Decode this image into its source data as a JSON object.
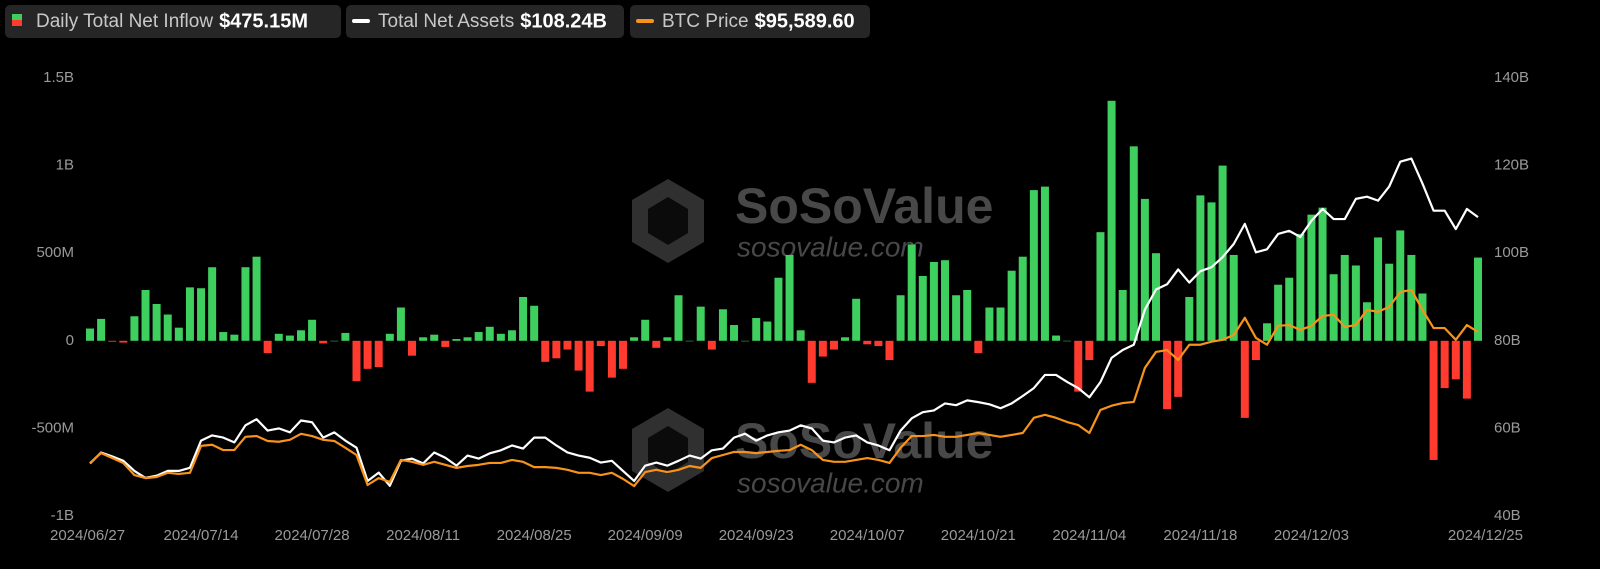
{
  "chart_data": {
    "type": "bar-line",
    "watermark": {
      "brand": "SoSoValue",
      "site": "sosovalue.com"
    },
    "categories": [
      "2024/06/27",
      null,
      null,
      null,
      null,
      null,
      null,
      null,
      null,
      null,
      "2024/07/14",
      null,
      null,
      null,
      null,
      null,
      null,
      null,
      null,
      null,
      "2024/07/28",
      null,
      null,
      null,
      null,
      null,
      null,
      null,
      null,
      null,
      "2024/08/11",
      null,
      null,
      null,
      null,
      null,
      null,
      null,
      null,
      null,
      "2024/08/25",
      null,
      null,
      null,
      null,
      null,
      null,
      null,
      null,
      null,
      "2024/09/09",
      null,
      null,
      null,
      null,
      null,
      null,
      null,
      null,
      null,
      "2024/09/23",
      null,
      null,
      null,
      null,
      null,
      null,
      null,
      null,
      null,
      "2024/10/07",
      null,
      null,
      null,
      null,
      null,
      null,
      null,
      null,
      null,
      "2024/10/21",
      null,
      null,
      null,
      null,
      null,
      null,
      null,
      null,
      null,
      "2024/11/04",
      null,
      null,
      null,
      null,
      null,
      null,
      null,
      null,
      null,
      "2024/11/18",
      null,
      null,
      null,
      null,
      null,
      null,
      null,
      null,
      null,
      "2024/12/03",
      null,
      null,
      null,
      null,
      null,
      null,
      null,
      null,
      null,
      null,
      null,
      null,
      null,
      null,
      "2024/12/25"
    ],
    "series": [
      {
        "name": "Daily Total Net Inflow",
        "latest_label": "$475.15M",
        "kind": "bar",
        "axis": "y",
        "color": "#3fcf5f",
        "negative_color": "#ff3b30",
        "values": [
          70,
          125,
          -5,
          -10,
          140,
          290,
          210,
          150,
          75,
          305,
          300,
          420,
          50,
          35,
          420,
          480,
          -70,
          40,
          30,
          60,
          120,
          -15,
          0,
          45,
          -230,
          -160,
          -150,
          40,
          190,
          -85,
          20,
          35,
          -35,
          10,
          20,
          50,
          80,
          40,
          60,
          250,
          200,
          -120,
          -100,
          -50,
          -170,
          -290,
          -30,
          -210,
          -160,
          20,
          120,
          -40,
          20,
          260,
          0,
          195,
          -50,
          180,
          90,
          0,
          130,
          110,
          360,
          490,
          60,
          -240,
          -90,
          -50,
          20,
          240,
          -20,
          -30,
          -110,
          260,
          550,
          370,
          450,
          460,
          260,
          290,
          -70,
          190,
          190,
          400,
          480,
          860,
          880,
          30,
          0,
          -290,
          -110,
          620,
          1370,
          290,
          1110,
          810,
          500,
          -390,
          -320,
          250,
          830,
          790,
          1000,
          490,
          -440,
          -110,
          100,
          320,
          360,
          610,
          720,
          760,
          380,
          490,
          430,
          220,
          590,
          440,
          630,
          490,
          270,
          -680,
          -270,
          -220,
          -330,
          475.15
        ]
      },
      {
        "name": "Total Net Assets",
        "latest_label": "$108.24B",
        "kind": "line",
        "axis": "y2",
        "color": "#ffffff",
        "values": [
          52.0,
          54.5,
          53.6,
          52.6,
          50.3,
          48.7,
          49.2,
          50.3,
          50.3,
          51.0,
          57.2,
          58.4,
          57.9,
          56.8,
          60.7,
          62.1,
          59.5,
          60.0,
          59.1,
          61.8,
          61.4,
          57.9,
          59.1,
          57.2,
          55.6,
          48.0,
          49.9,
          46.9,
          52.6,
          53.1,
          52.0,
          54.5,
          53.3,
          51.5,
          53.8,
          53.1,
          54.3,
          55.0,
          56.1,
          55.4,
          57.9,
          57.9,
          56.1,
          54.5,
          53.8,
          53.3,
          52.2,
          52.6,
          50.3,
          48.0,
          51.5,
          52.2,
          51.5,
          52.6,
          53.8,
          53.1,
          55.0,
          55.4,
          57.9,
          58.8,
          57.2,
          58.4,
          59.1,
          59.5,
          60.7,
          60.0,
          57.2,
          56.8,
          57.9,
          58.4,
          56.8,
          56.1,
          55.0,
          59.5,
          62.3,
          63.7,
          64.1,
          65.7,
          65.3,
          66.4,
          66.0,
          65.5,
          64.6,
          65.7,
          67.4,
          69.2,
          72.2,
          72.2,
          70.6,
          69.2,
          67.1,
          70.6,
          76.1,
          77.9,
          79.1,
          87.1,
          91.7,
          92.9,
          96.3,
          93.3,
          95.9,
          96.8,
          99.1,
          102.1,
          106.7,
          100.2,
          100.9,
          104.4,
          105.1,
          103.7,
          107.4,
          110.1,
          107.8,
          107.8,
          112.4,
          112.9,
          112.0,
          115.2,
          120.9,
          121.6,
          115.9,
          109.7,
          109.7,
          105.5,
          110.1,
          108.24
        ]
      },
      {
        "name": "BTC Price",
        "latest_label": "$95,589.60",
        "kind": "line",
        "axis": "y3",
        "color": "#f7931a",
        "values": [
          61000,
          63600,
          62300,
          61000,
          57800,
          57000,
          57300,
          58400,
          58100,
          58400,
          65500,
          65800,
          64400,
          64400,
          67900,
          68100,
          66800,
          66600,
          67100,
          68700,
          68100,
          67100,
          66800,
          65000,
          63100,
          55200,
          57000,
          56000,
          61800,
          61300,
          60500,
          61300,
          60500,
          59700,
          60200,
          60500,
          61000,
          61000,
          61800,
          61300,
          59900,
          59900,
          59700,
          59200,
          58400,
          58400,
          57800,
          58400,
          56800,
          54900,
          58600,
          59200,
          58600,
          59200,
          60200,
          59700,
          62300,
          63100,
          63900,
          63900,
          63600,
          63900,
          64200,
          64400,
          65800,
          64400,
          61800,
          61300,
          61300,
          61800,
          62300,
          61800,
          61000,
          65000,
          68100,
          68100,
          68400,
          67900,
          67900,
          68400,
          68900,
          68400,
          67900,
          68400,
          68900,
          72900,
          73700,
          72900,
          71800,
          71000,
          68900,
          75000,
          76100,
          76800,
          77100,
          86100,
          90300,
          90800,
          88200,
          92200,
          92200,
          93000,
          93500,
          94800,
          99300,
          94000,
          92200,
          97200,
          97400,
          96100,
          97200,
          99800,
          100100,
          96900,
          97400,
          101400,
          100900,
          102200,
          106100,
          106700,
          101400,
          96600,
          96600,
          93500,
          97400,
          95589.6
        ]
      }
    ],
    "ylim": [
      -1000,
      1500
    ],
    "yticks": [
      {
        "value": -1000,
        "label": "-1B"
      },
      {
        "value": -500,
        "label": "-500M"
      },
      0,
      {
        "value": 500,
        "label": "500M"
      },
      {
        "value": 1000,
        "label": "1B"
      },
      {
        "value": 1500,
        "label": "1.5B"
      }
    ],
    "y2lim": [
      40,
      140
    ],
    "y2ticks": [
      {
        "value": 40,
        "label": "40B"
      },
      {
        "value": 60,
        "label": "60B"
      },
      {
        "value": 80,
        "label": "80B"
      },
      {
        "value": 100,
        "label": "100B"
      },
      {
        "value": 120,
        "label": "120B"
      },
      {
        "value": 140,
        "label": "140B"
      }
    ],
    "y3lim": [
      47000,
      162600
    ],
    "grid": false
  }
}
